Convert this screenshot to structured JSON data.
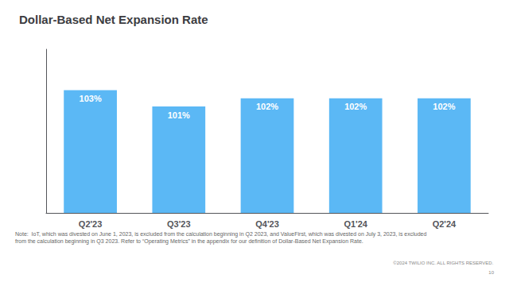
{
  "chart_data": {
    "type": "bar",
    "title": "Dollar-Based Net Expansion Rate",
    "categories": [
      "Q2'23",
      "Q3'23",
      "Q4'23",
      "Q1'24",
      "Q2'24"
    ],
    "values": [
      103,
      101,
      102,
      102,
      102
    ],
    "value_labels": [
      "103%",
      "101%",
      "102%",
      "102%",
      "102%"
    ],
    "data_labels": true,
    "color": "#5BB8F5",
    "ylim": [
      88,
      108
    ],
    "yticks": [],
    "tick_labels": "x",
    "grid": false,
    "annotations": [
      "Note:  IoT, which was divested on June 1, 2023, is excluded from the calculation beginning in Q2 2023, and ValueFirst, which was divested on July 3, 2023, is excluded",
      "from the calculation beginning in Q3 2023. Refer to “Operating Metrics” in the appendix for our definition of Dollar-Based Net Expansion Rate.",
      "©2024 TWILIO INC. ALL RIGHTS RESERVED.",
      "10"
    ]
  }
}
